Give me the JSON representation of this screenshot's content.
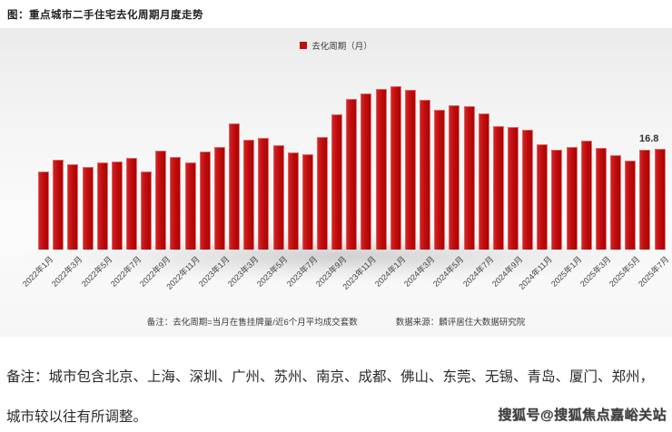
{
  "page": {
    "title": "图：重点城市二手住宅去化周期月度走势",
    "note_line1": "备注：城市包含北京、上海、深圳、广州、苏州、南京、成都、佛山、东莞、无锡、青岛、厦门、郑州，",
    "note_line2": "城市较以往有所调整。",
    "watermark": "搜狐号@搜狐焦点嘉峪关站"
  },
  "chart_data": {
    "type": "bar",
    "title": "重点城市二手住宅去化周期月度走势",
    "legend": "去化周期（月）",
    "legend_position": "top-center",
    "bar_color": "#c00d0d",
    "grid": false,
    "xlabel": "",
    "ylabel": "去化周期（月）",
    "ylim": [
      0,
      30
    ],
    "x_tick_step": 2,
    "last_value_label": "16.8",
    "footnote_left": "备注：去化周期=当月在售挂牌量/近6个月平均成交套数",
    "footnote_right": "数据来源：麟评居住大数据研究院",
    "categories": [
      "2022年1月",
      "2022年2月",
      "2022年3月",
      "2022年4月",
      "2022年5月",
      "2022年6月",
      "2022年7月",
      "2022年8月",
      "2022年9月",
      "2022年10月",
      "2022年11月",
      "2022年12月",
      "2023年1月",
      "2023年2月",
      "2023年3月",
      "2023年4月",
      "2023年5月",
      "2023年6月",
      "2023年7月",
      "2023年8月",
      "2023年9月",
      "2023年10月",
      "2023年11月",
      "2023年12月",
      "2024年1月",
      "2024年2月",
      "2024年3月",
      "2024年4月",
      "2024年5月",
      "2024年6月",
      "2024年7月",
      "2024年8月",
      "2024年9月",
      "2024年10月",
      "2024年11月",
      "2024年12月",
      "2025年1月",
      "2025年2月",
      "2025年3月",
      "2025年4月",
      "2025年5月",
      "2025年6月",
      "2025年7月"
    ],
    "values": [
      13.0,
      15.0,
      14.2,
      13.8,
      14.6,
      14.7,
      15.3,
      13.1,
      16.5,
      15.5,
      14.6,
      16.4,
      17.1,
      21.1,
      18.3,
      18.7,
      17.4,
      16.2,
      15.9,
      18.8,
      22.6,
      25.2,
      26.0,
      26.8,
      27.3,
      26.6,
      25.0,
      23.4,
      24.1,
      23.9,
      22.7,
      20.6,
      20.5,
      20.0,
      17.6,
      16.6,
      17.1,
      18.2,
      17.0,
      15.7,
      14.8,
      16.6,
      16.8
    ],
    "x_tick_labels": [
      "2022年1月",
      "2022年3月",
      "2022年5月",
      "2022年7月",
      "2022年9月",
      "2022年11月",
      "2023年1月",
      "2023年3月",
      "2023年5月",
      "2023年7月",
      "2023年9月",
      "2023年11月",
      "2024年1月",
      "2024年3月",
      "2024年5月",
      "2024年7月",
      "2024年9月",
      "2024年11月",
      "2025年1月",
      "2025年3月",
      "2025年5月",
      "2025年7月"
    ]
  }
}
